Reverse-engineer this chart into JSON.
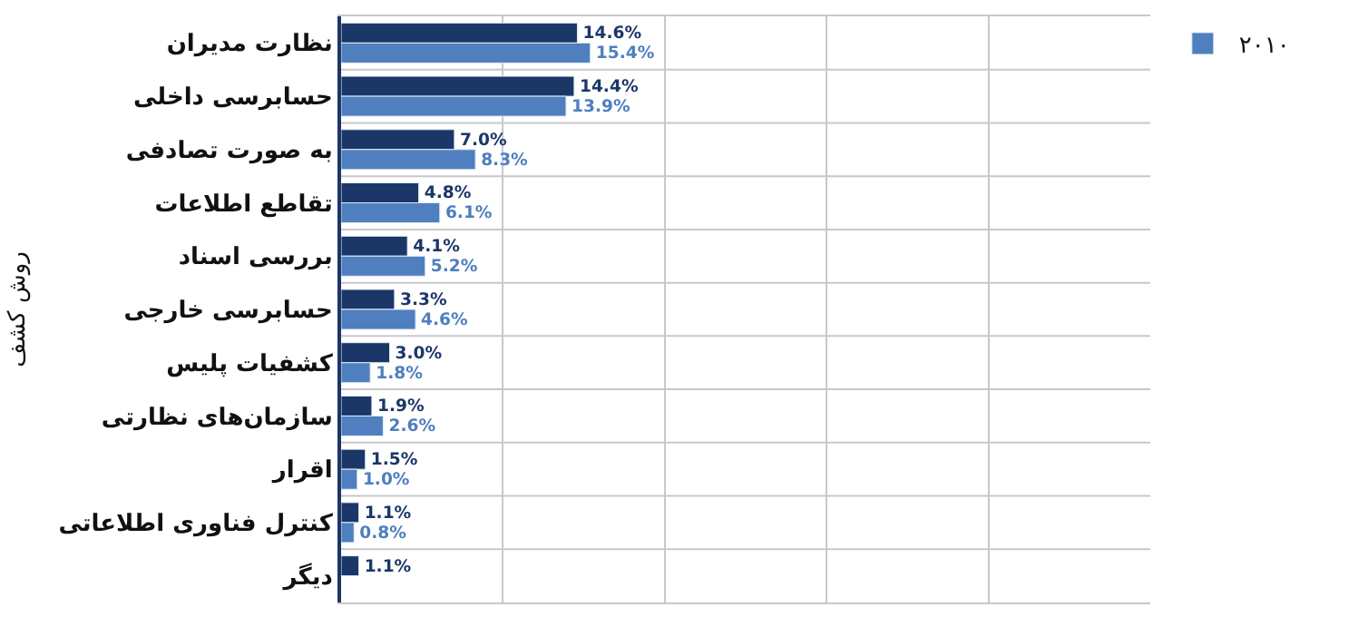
{
  "chart_data": {
    "type": "bar",
    "orientation": "horizontal",
    "ylabel": "روش کشف",
    "categories": [
      "نظارت مدیران",
      "حسابرسی داخلی",
      "به صورت تصادفی",
      "تقاطع اطلاعات",
      "بررسی اسناد",
      "حسابرسی خارجی",
      "کشفیات پلیس",
      "سازمان‌های نظارتی",
      "اقرار",
      "کنترل فناوری اطلاعاتی",
      "دیگر"
    ],
    "series": [
      {
        "color": "#1b3768",
        "values": [
          14.6,
          14.4,
          7.0,
          4.8,
          4.1,
          3.3,
          3.0,
          1.9,
          1.5,
          1.1,
          1.1
        ],
        "value_labels": [
          "14.6%",
          "14.4%",
          "7.0%",
          "4.8%",
          "4.1%",
          "3.3%",
          "3.0%",
          "1.9%",
          "1.5%",
          "1.1%",
          "1.1%"
        ]
      },
      {
        "name": "۲۰۱۰",
        "color": "#4f7fbf",
        "values": [
          15.4,
          13.9,
          8.3,
          6.1,
          5.2,
          4.6,
          1.8,
          2.6,
          1.0,
          0.8,
          null
        ],
        "value_labels": [
          "15.4%",
          "13.9%",
          "8.3%",
          "6.1%",
          "5.2%",
          "4.6%",
          "1.8%",
          "2.6%",
          "1.0%",
          "0.8%",
          null
        ]
      }
    ],
    "xlim": [
      0,
      50
    ],
    "xticks": [
      {
        "value": 0,
        "label": null
      },
      {
        "value": 10,
        "label": null
      },
      {
        "value": 20,
        "label": null
      },
      {
        "value": 30,
        "label": null
      },
      {
        "value": 40,
        "label": null
      }
    ],
    "tick_labels": "y",
    "grid": true,
    "legend": "top right"
  }
}
